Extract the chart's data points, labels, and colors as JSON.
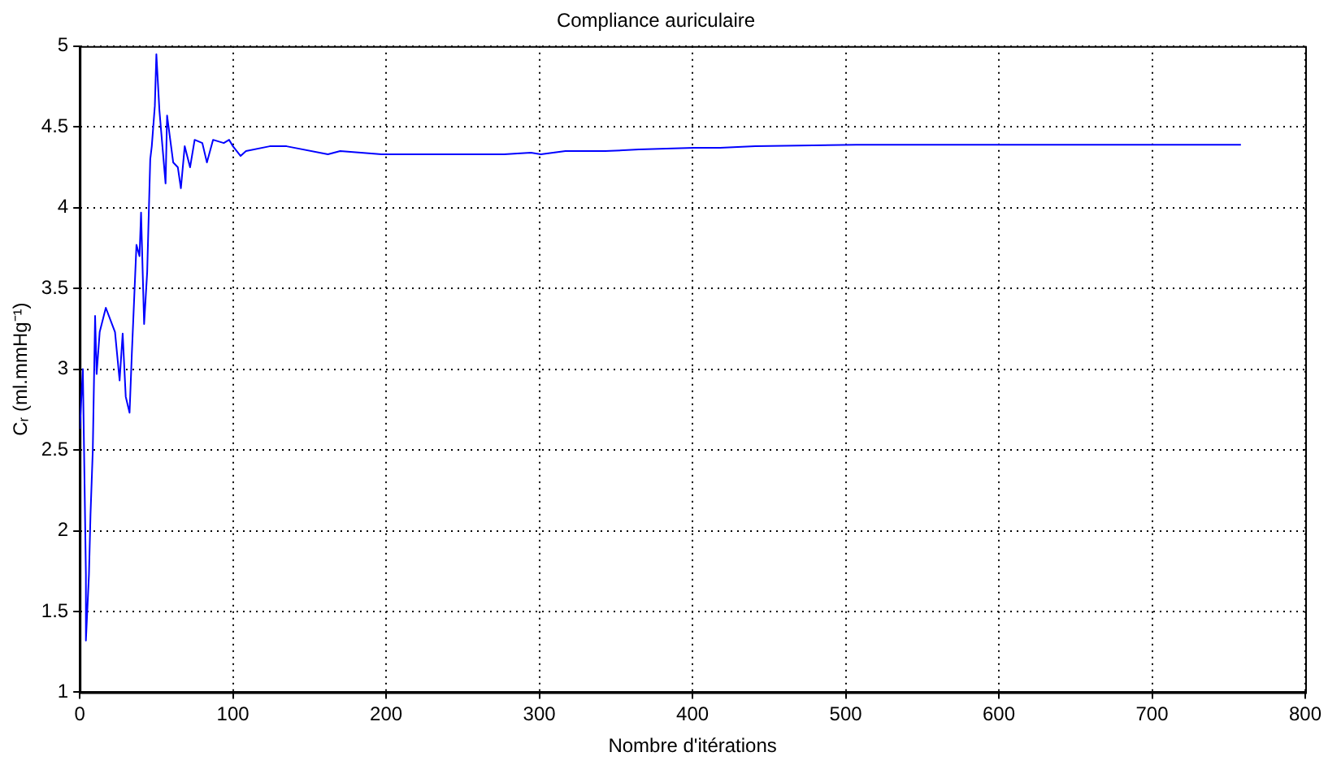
{
  "chart_data": {
    "type": "line",
    "title": "Compliance auriculaire",
    "xlabel": "Nombre d'itérations",
    "ylabel": "Cᵣ (ml.mmHg⁻¹)",
    "x": [
      0,
      2,
      4,
      4,
      6,
      7,
      8.5,
      10,
      11,
      13,
      17,
      23,
      26,
      28,
      30,
      32.5,
      34,
      37,
      39,
      40,
      42,
      44,
      46,
      47,
      49,
      50,
      52,
      56,
      57,
      61,
      64,
      66,
      68.5,
      72,
      75,
      80,
      83,
      87,
      94,
      97.5,
      100,
      105,
      108.5,
      124,
      135,
      162,
      170,
      197,
      204,
      277,
      294.5,
      301,
      317,
      343,
      365,
      401,
      418,
      441,
      507,
      596,
      758
    ],
    "series": [
      {
        "color": "#0000ff",
        "values": [
          2.63,
          3.0,
          1.73,
          1.32,
          1.73,
          2.1,
          2.5,
          3.33,
          2.97,
          3.23,
          3.38,
          3.23,
          2.93,
          3.22,
          2.83,
          2.73,
          3.1,
          3.77,
          3.7,
          3.97,
          3.28,
          3.6,
          4.3,
          4.38,
          4.63,
          4.95,
          4.6,
          4.15,
          4.57,
          4.28,
          4.25,
          4.12,
          4.38,
          4.25,
          4.42,
          4.4,
          4.28,
          4.42,
          4.4,
          4.42,
          4.38,
          4.32,
          4.35,
          4.38,
          4.38,
          4.33,
          4.35,
          4.33,
          4.33,
          4.33,
          4.34,
          4.33,
          4.35,
          4.35,
          4.36,
          4.37,
          4.37,
          4.38,
          4.39,
          4.39,
          4.39
        ]
      }
    ],
    "xlim": [
      0,
      800
    ],
    "xticks": [
      0,
      100,
      200,
      300,
      400,
      500,
      600,
      700,
      800
    ],
    "ylim": [
      1,
      5
    ],
    "yticks": [
      1,
      1.5,
      2,
      2.5,
      3,
      3.5,
      4,
      4.5,
      5
    ],
    "grid": true,
    "legend": false,
    "marker": "none",
    "line_style": "solid"
  }
}
